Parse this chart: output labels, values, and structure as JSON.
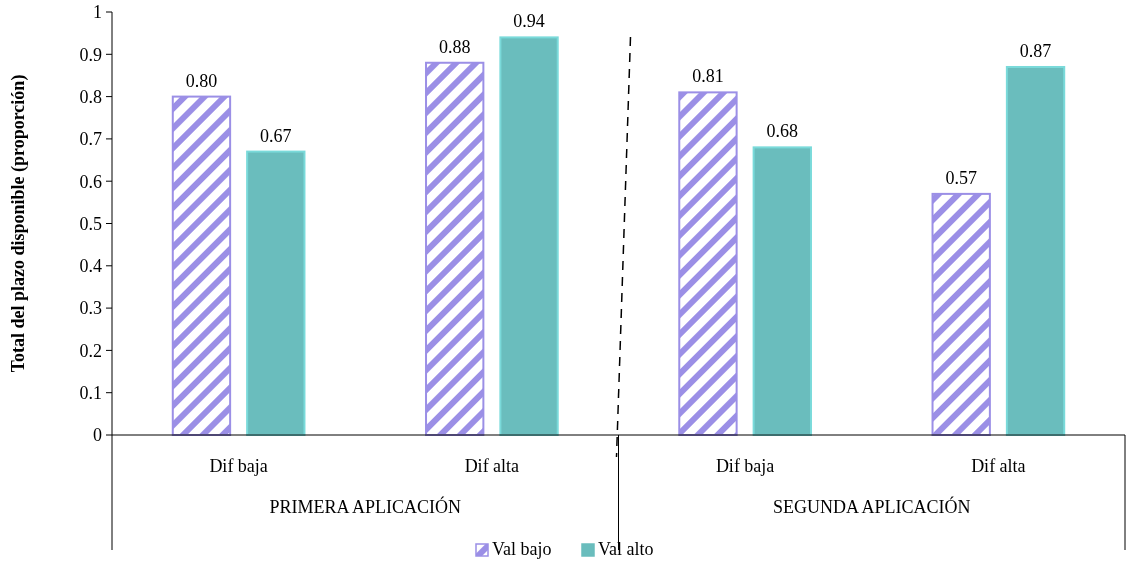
{
  "chart_data": {
    "type": "bar",
    "ylabel": "Total del plazo disponible (proporción)",
    "categories": [
      "Dif baja",
      "Dif alta",
      "Dif baja",
      "Dif alta"
    ],
    "annotations": [
      "PRIMERA APLICACIÓN",
      "SEGUNDA APLICACIÓN"
    ],
    "series": [
      {
        "name": "Val bajo",
        "color": "#9b8fe6",
        "values": [
          0.8,
          0.88,
          0.81,
          0.57
        ],
        "value_labels": [
          "0.80",
          "0.88",
          "0.81",
          "0.57"
        ]
      },
      {
        "name": "Val alto",
        "color": "#6abdbd",
        "values": [
          0.67,
          0.94,
          0.68,
          0.87
        ],
        "value_labels": [
          "0.67",
          "0.94",
          "0.68",
          "0.87"
        ]
      }
    ],
    "ylim": [
      0,
      1
    ],
    "yticks": [
      0,
      0.1,
      0.2,
      0.3,
      0.4,
      0.5,
      0.6,
      0.7,
      0.8,
      0.9,
      1
    ],
    "legend": "bottom",
    "grid": false
  }
}
